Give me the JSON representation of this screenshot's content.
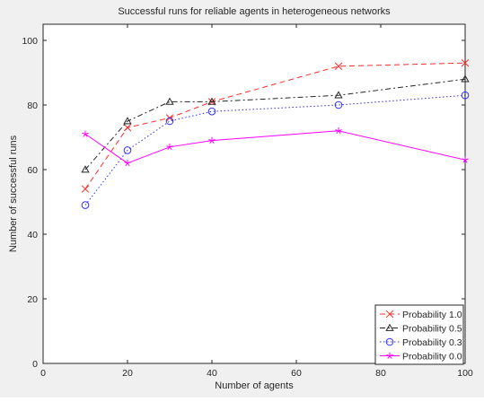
{
  "chart_data": {
    "type": "line",
    "title": "Successful runs for reliable agents in heterogeneous networks",
    "xlabel": "Number of agents",
    "ylabel": "Number of successful runs",
    "xlim": [
      0,
      100
    ],
    "ylim": [
      0,
      105
    ],
    "xticks": [
      0,
      20,
      40,
      60,
      80,
      100
    ],
    "yticks": [
      0,
      20,
      40,
      60,
      80,
      100
    ],
    "grid": false,
    "legend_position": "bottom-right",
    "x": [
      10,
      20,
      30,
      40,
      70,
      100
    ],
    "series": [
      {
        "name": "Probability 1.0",
        "values": [
          54,
          73,
          76,
          81,
          92,
          93
        ],
        "color": "#ff2a2a",
        "dash": "6,4",
        "marker": "x"
      },
      {
        "name": "Probability 0.5",
        "values": [
          60,
          75,
          81,
          81,
          83,
          88
        ],
        "color": "#262626",
        "dash": "6,3,2,3",
        "marker": "triangle"
      },
      {
        "name": "Probability 0.3",
        "values": [
          49,
          66,
          75,
          78,
          80,
          83
        ],
        "color": "#2f2fff",
        "dash": "1.5,2.5",
        "marker": "circle"
      },
      {
        "name": "Probability 0.0",
        "values": [
          71,
          62,
          67,
          69,
          72,
          63
        ],
        "color": "#ff00ff",
        "dash": "",
        "marker": "star"
      }
    ]
  }
}
